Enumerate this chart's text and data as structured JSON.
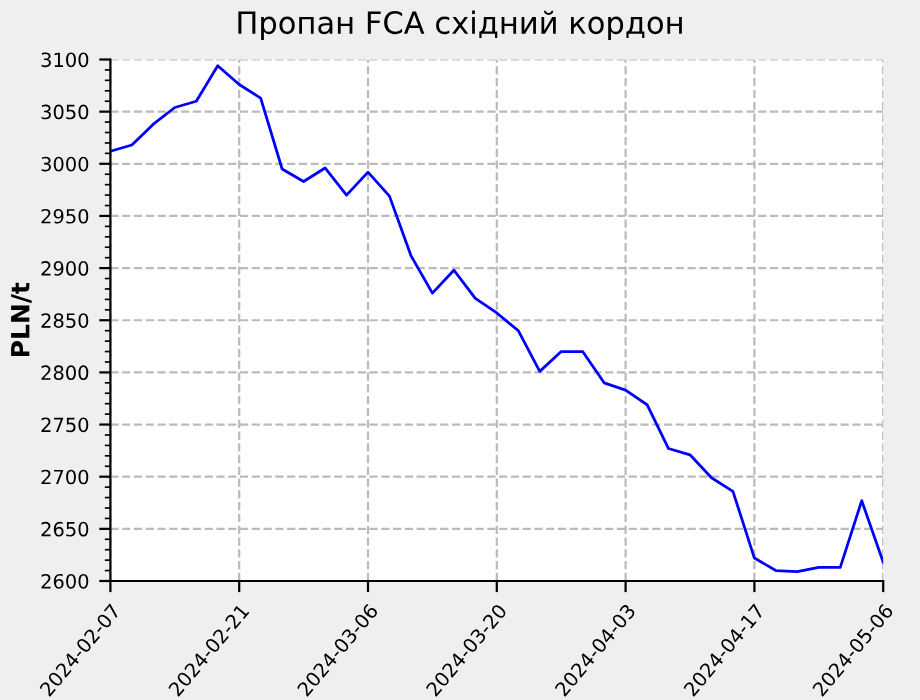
{
  "chart_data": {
    "type": "line",
    "title": "Пропан FCA східний кордон",
    "ylabel": "PLN/t",
    "categories": [
      "2024-02-07",
      null,
      null,
      null,
      null,
      null,
      "2024-02-21",
      null,
      null,
      null,
      null,
      null,
      "2024-03-06",
      null,
      null,
      null,
      null,
      null,
      "2024-03-20",
      null,
      null,
      null,
      null,
      null,
      "2024-04-03",
      null,
      null,
      null,
      null,
      null,
      "2024-04-17",
      null,
      null,
      null,
      null,
      null,
      "2024-05-06"
    ],
    "series": [
      {
        "color": "#0000ff",
        "values": [
          3012,
          3018,
          3038,
          3054,
          3060,
          3094,
          3076,
          3063,
          2995,
          2983,
          2996,
          2970,
          2992,
          2969,
          2912,
          2876,
          2898,
          2871,
          2857,
          2840,
          2801,
          2820,
          2820,
          2790,
          2783,
          2769,
          2727,
          2721,
          2699,
          2686,
          2622,
          2610,
          2609,
          2613,
          2613,
          2677,
          2618
        ]
      }
    ],
    "ylim": [
      2600,
      3100
    ],
    "yticks": [
      2600,
      2650,
      2700,
      2750,
      2800,
      2850,
      2900,
      2950,
      3000,
      3050,
      3100
    ],
    "grid": true,
    "legend": false,
    "marker": "none",
    "line_style": "solid"
  }
}
